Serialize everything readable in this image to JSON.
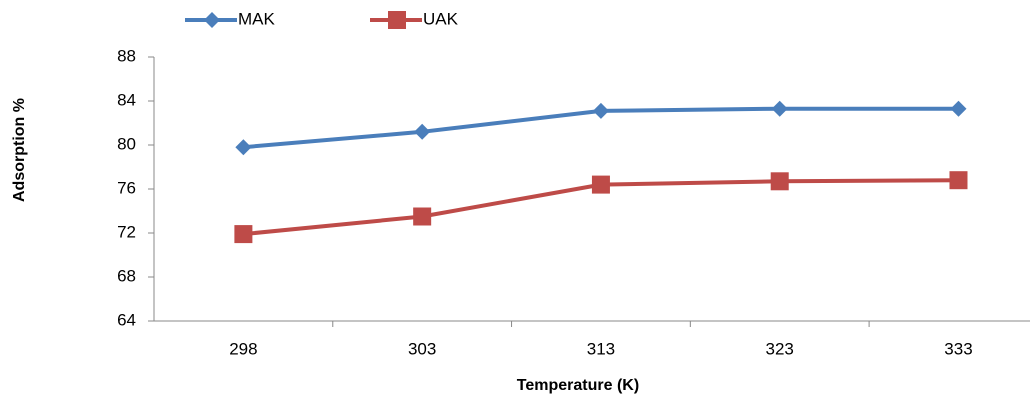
{
  "chart_data": {
    "type": "line",
    "x_label": "Temperature (K)",
    "y_label": "Adsorption %",
    "categories": [
      "298",
      "303",
      "313",
      "323",
      "333"
    ],
    "series": [
      {
        "name": "MAK",
        "color": "#4a7ebb",
        "marker": "diamond",
        "values": [
          79.8,
          81.2,
          83.1,
          83.3,
          83.3
        ]
      },
      {
        "name": "UAK",
        "color": "#be4b48",
        "marker": "square",
        "values": [
          71.9,
          73.5,
          76.4,
          76.7,
          76.8
        ]
      }
    ],
    "ylim": [
      64,
      88
    ],
    "yticks": [
      64,
      68,
      72,
      76,
      80,
      84,
      88
    ],
    "grid": false,
    "legend": "top"
  }
}
